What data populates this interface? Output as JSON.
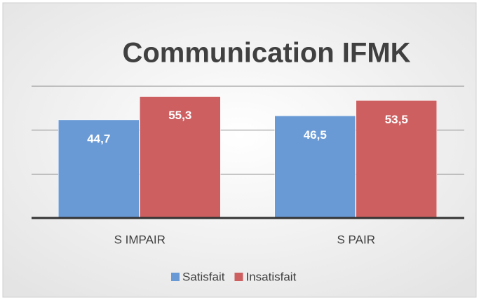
{
  "chart_data": {
    "type": "bar",
    "title": "Communication IFMK",
    "categories": [
      "S IMPAIR",
      "S PAIR"
    ],
    "series": [
      {
        "name": "Satisfait",
        "color": "#6a9ad6",
        "values": [
          44.7,
          46.5
        ],
        "value_labels": [
          "44,7",
          "46,5"
        ]
      },
      {
        "name": "Insatisfait",
        "color": "#cd5f61",
        "values": [
          55.3,
          53.5
        ],
        "value_labels": [
          "55,3",
          "53,5"
        ]
      }
    ],
    "ylim": [
      0,
      60
    ],
    "yticks": [
      0,
      20,
      40,
      60
    ],
    "grid": true,
    "legend": "bottom"
  }
}
